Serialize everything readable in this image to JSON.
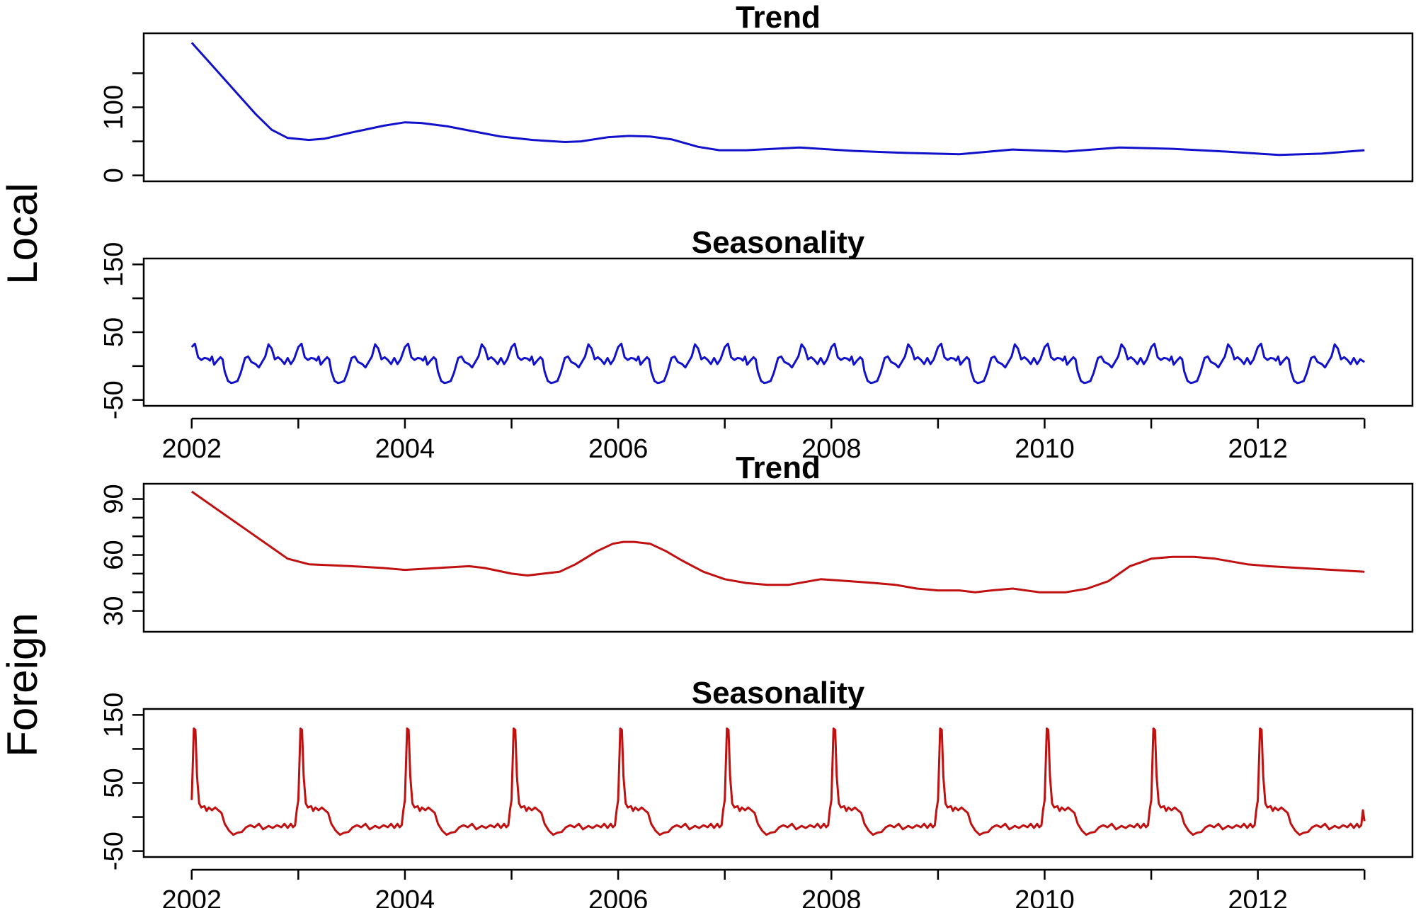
{
  "groups": [
    {
      "label": "Local",
      "color": "#1111cc"
    },
    {
      "label": "Foreign",
      "color": "#c01010"
    }
  ],
  "chart_data": [
    {
      "type": "line",
      "title": "Trend",
      "group": "Local",
      "x_ticks": [
        2002,
        2004,
        2006,
        2008,
        2010,
        2012
      ],
      "y_ticks": [
        0,
        100
      ],
      "y_minor_ticks": [
        50,
        150
      ],
      "ylim": [
        0,
        200
      ],
      "xlim": [
        2001.55,
        2013.45
      ],
      "series": [
        {
          "color": "#1111cc",
          "x": [
            2002.0,
            2002.2,
            2002.4,
            2002.6,
            2002.75,
            2002.9,
            2003.1,
            2003.25,
            2003.5,
            2003.8,
            2004.0,
            2004.15,
            2004.4,
            2004.7,
            2004.9,
            2005.2,
            2005.5,
            2005.65,
            2005.9,
            2006.1,
            2006.3,
            2006.5,
            2006.75,
            2006.95,
            2007.2,
            2007.7,
            2008.2,
            2008.7,
            2009.2,
            2009.7,
            2010.2,
            2010.7,
            2011.2,
            2011.7,
            2012.2,
            2012.6,
            2013.0
          ],
          "y": [
            195,
            160,
            125,
            90,
            67,
            55,
            52,
            54,
            63,
            73,
            78,
            77,
            72,
            63,
            57,
            52,
            49,
            50,
            56,
            58,
            57,
            53,
            42,
            37,
            37,
            41,
            36,
            33,
            31,
            38,
            35,
            41,
            39,
            35,
            30,
            32,
            37
          ]
        }
      ]
    },
    {
      "type": "line",
      "title": "Seasonality",
      "group": "Local",
      "x_ticks": [
        2002,
        2004,
        2006,
        2008,
        2010,
        2012
      ],
      "y_ticks": [
        -50,
        50,
        150
      ],
      "y_minor_ticks": [
        0,
        100
      ],
      "ylim": [
        -50,
        150
      ],
      "xlim": [
        2001.55,
        2013.45
      ],
      "cycle_start": 2002.0,
      "cycles": 11,
      "series": [
        {
          "color": "#1111cc",
          "cycle_x": [
            0.0,
            0.03,
            0.06,
            0.09,
            0.12,
            0.15,
            0.17,
            0.19,
            0.21,
            0.24,
            0.27,
            0.29,
            0.31,
            0.34,
            0.37,
            0.4,
            0.43,
            0.46,
            0.5,
            0.53,
            0.56,
            0.6,
            0.63,
            0.66,
            0.69,
            0.72,
            0.75,
            0.78,
            0.81,
            0.84,
            0.87,
            0.9,
            0.93,
            0.96
          ],
          "cycle_y": [
            28,
            33,
            13,
            9,
            12,
            11,
            8,
            14,
            2,
            8,
            13,
            10,
            -8,
            -22,
            -25,
            -24,
            -22,
            -10,
            12,
            14,
            6,
            3,
            -2,
            6,
            14,
            32,
            26,
            10,
            13,
            9,
            3,
            12,
            3,
            10
          ],
          "end_x": 2013.0,
          "end_y": 6
        }
      ]
    },
    {
      "type": "line",
      "title": "Trend",
      "group": "Foreign",
      "x_ticks": [
        2002,
        2004,
        2006,
        2008,
        2010,
        2012
      ],
      "y_ticks": [
        30,
        60,
        90
      ],
      "y_minor_ticks": [
        40,
        50,
        70,
        80
      ],
      "ylim": [
        22,
        95
      ],
      "xlim": [
        2001.55,
        2013.45
      ],
      "series": [
        {
          "color": "#c01010",
          "x": [
            2002.0,
            2002.3,
            2002.6,
            2002.9,
            2003.1,
            2003.5,
            2003.8,
            2004.0,
            2004.3,
            2004.6,
            2004.75,
            2005.0,
            2005.15,
            2005.3,
            2005.45,
            2005.6,
            2005.8,
            2005.95,
            2006.05,
            2006.15,
            2006.3,
            2006.45,
            2006.6,
            2006.8,
            2007.0,
            2007.2,
            2007.4,
            2007.6,
            2007.9,
            2008.15,
            2008.4,
            2008.6,
            2008.8,
            2009.0,
            2009.2,
            2009.35,
            2009.5,
            2009.7,
            2009.95,
            2010.2,
            2010.4,
            2010.6,
            2010.8,
            2011.0,
            2011.2,
            2011.4,
            2011.6,
            2011.9,
            2012.1,
            2012.4,
            2012.7,
            2013.0
          ],
          "y": [
            94,
            82,
            70,
            58,
            55,
            54,
            53,
            52,
            53,
            54,
            53,
            50,
            49,
            50,
            51,
            55,
            62,
            66,
            67,
            67,
            66,
            62,
            57,
            51,
            47,
            45,
            44,
            44,
            47,
            46,
            45,
            44,
            42,
            41,
            41,
            40,
            41,
            42,
            40,
            40,
            42,
            46,
            54,
            58,
            59,
            59,
            58,
            55,
            54,
            53,
            52,
            51
          ]
        }
      ]
    },
    {
      "type": "line",
      "title": "Seasonality",
      "group": "Foreign",
      "x_ticks": [
        2002,
        2004,
        2006,
        2008,
        2010,
        2012
      ],
      "y_ticks": [
        -50,
        50,
        150
      ],
      "y_minor_ticks": [
        0,
        100
      ],
      "ylim": [
        -50,
        150
      ],
      "xlim": [
        2001.55,
        2013.45
      ],
      "cycle_start": 2002.0,
      "cycles": 11,
      "series": [
        {
          "color": "#c01010",
          "cycle_x": [
            0.0,
            0.02,
            0.035,
            0.05,
            0.07,
            0.09,
            0.12,
            0.14,
            0.16,
            0.19,
            0.22,
            0.25,
            0.28,
            0.31,
            0.35,
            0.39,
            0.43,
            0.47,
            0.51,
            0.55,
            0.59,
            0.63,
            0.67,
            0.72,
            0.76,
            0.8,
            0.84,
            0.87,
            0.9,
            0.93,
            0.95,
            0.97,
            0.985
          ],
          "cycle_y": [
            25,
            130,
            128,
            60,
            20,
            14,
            16,
            9,
            14,
            10,
            14,
            10,
            6,
            -10,
            -20,
            -26,
            -23,
            -22,
            -15,
            -12,
            -15,
            -10,
            -18,
            -13,
            -16,
            -12,
            -15,
            -10,
            -16,
            -10,
            -15,
            -12,
            10
          ],
          "end_x": 2013.0,
          "end_y": -6
        }
      ]
    }
  ]
}
